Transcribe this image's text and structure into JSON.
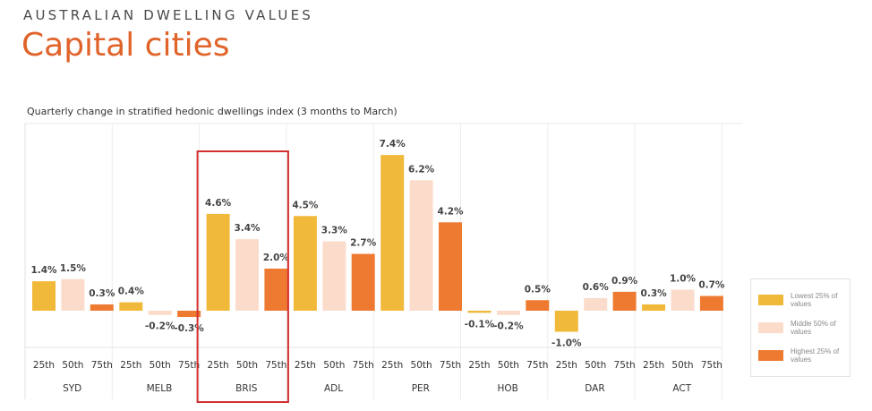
{
  "header": {
    "eyebrow": "AUSTRALIAN DWELLING VALUES",
    "title": "Capital cities"
  },
  "chart_data": {
    "type": "bar",
    "subtitle": "Quarterly change in stratified hedonic dwellings index (3 months to March)",
    "groups": [
      "SYD",
      "MELB",
      "BRIS",
      "ADL",
      "PER",
      "HOB",
      "DAR",
      "ACT"
    ],
    "sub_categories": [
      "25th",
      "50th",
      "75th"
    ],
    "series": [
      {
        "name": "Lowest 25% of values",
        "color": "#f0b93a",
        "values": [
          1.4,
          0.4,
          4.6,
          4.5,
          7.4,
          -0.1,
          -1.0,
          0.3
        ]
      },
      {
        "name": "Middle 50% of values",
        "color": "#fbdccb",
        "values": [
          1.5,
          -0.2,
          3.4,
          3.3,
          6.2,
          -0.2,
          0.6,
          1.0
        ]
      },
      {
        "name": "Highest 25% of values",
        "color": "#ee7a31",
        "values": [
          0.3,
          -0.3,
          2.0,
          2.7,
          4.2,
          0.5,
          0.9,
          0.7
        ]
      }
    ],
    "data_labels": [
      [
        "1.4%",
        "1.5%",
        "0.3%"
      ],
      [
        "0.4%",
        "-0.2%",
        "-0.3%"
      ],
      [
        "4.6%",
        "3.4%",
        "2.0%"
      ],
      [
        "4.5%",
        "3.3%",
        "2.7%"
      ],
      [
        "7.4%",
        "6.2%",
        "4.2%"
      ],
      [
        "-0.1%",
        "-0.2%",
        "0.5%"
      ],
      [
        "-1.0%",
        "0.6%",
        "0.9%"
      ],
      [
        "0.3%",
        "1.0%",
        "0.7%"
      ]
    ],
    "legend_position": "right",
    "highlighted_group": "BRIS",
    "highlight_color": "#d32f2f",
    "ylim": [
      -1.2,
      8.0
    ]
  }
}
